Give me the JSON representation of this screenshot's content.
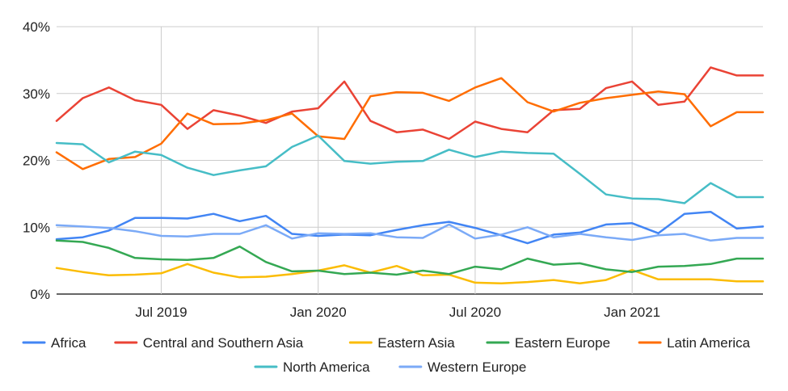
{
  "chart_data": {
    "type": "line",
    "title": "",
    "xlabel": "",
    "ylabel": "",
    "ylim": [
      0,
      40
    ],
    "yticks": [
      0,
      10,
      20,
      30,
      40
    ],
    "ytick_labels": [
      "0%",
      "10%",
      "20%",
      "30%",
      "40%"
    ],
    "xtick_labels": [
      {
        "label": "Jul 2019",
        "index": 4
      },
      {
        "label": "Jan 2020",
        "index": 10
      },
      {
        "label": "Jul 2020",
        "index": 16
      },
      {
        "label": "Jan 2021",
        "index": 22
      }
    ],
    "x": [
      "Mar 2019",
      "Apr 2019",
      "May 2019",
      "Jun 2019",
      "Jul 2019",
      "Aug 2019",
      "Sep 2019",
      "Oct 2019",
      "Nov 2019",
      "Dec 2019",
      "Jan 2020",
      "Feb 2020",
      "Mar 2020",
      "Apr 2020",
      "May 2020",
      "Jun 2020",
      "Jul 2020",
      "Aug 2020",
      "Sep 2020",
      "Oct 2020",
      "Nov 2020",
      "Dec 2020",
      "Jan 2021",
      "Feb 2021",
      "Mar 2021",
      "Apr 2021",
      "May 2021",
      "Jun 2021"
    ],
    "grid": true,
    "legend_position": "bottom",
    "series": [
      {
        "name": "Africa",
        "color": "#4285f4",
        "values": [
          8.2,
          8.5,
          9.5,
          11.4,
          11.4,
          11.3,
          12.0,
          10.9,
          11.7,
          9.0,
          8.7,
          8.9,
          8.8,
          9.6,
          10.3,
          10.8,
          9.9,
          8.8,
          7.6,
          8.9,
          9.2,
          10.4,
          10.6,
          9.1,
          12.0,
          12.3,
          9.8,
          10.1
        ]
      },
      {
        "name": "Central and Southern Asia",
        "color": "#ea4335",
        "values": [
          25.9,
          29.3,
          30.9,
          29.0,
          28.3,
          24.7,
          27.5,
          26.7,
          25.6,
          27.3,
          27.8,
          31.8,
          25.9,
          24.2,
          24.6,
          23.2,
          25.8,
          24.7,
          24.2,
          27.5,
          27.7,
          30.8,
          31.8,
          28.3,
          28.8,
          33.9,
          32.7,
          32.7
        ]
      },
      {
        "name": "Eastern Asia",
        "color": "#fbbc04",
        "values": [
          3.9,
          3.3,
          2.8,
          2.9,
          3.1,
          4.5,
          3.2,
          2.5,
          2.6,
          3.0,
          3.5,
          4.3,
          3.2,
          4.2,
          2.8,
          2.9,
          1.7,
          1.6,
          1.8,
          2.1,
          1.6,
          2.1,
          3.6,
          2.2,
          2.2,
          2.2,
          1.9,
          1.9
        ]
      },
      {
        "name": "Eastern Europe",
        "color": "#34a853",
        "values": [
          8.0,
          7.8,
          6.9,
          5.4,
          5.2,
          5.1,
          5.4,
          7.1,
          4.8,
          3.4,
          3.5,
          3.0,
          3.2,
          2.9,
          3.5,
          3.0,
          4.1,
          3.7,
          5.3,
          4.4,
          4.6,
          3.7,
          3.3,
          4.1,
          4.2,
          4.5,
          5.3,
          5.3
        ]
      },
      {
        "name": "Latin America",
        "color": "#ff6d01",
        "values": [
          21.2,
          18.7,
          20.2,
          20.5,
          22.5,
          27.0,
          25.4,
          25.5,
          26.0,
          27.0,
          23.6,
          23.2,
          29.6,
          30.2,
          30.1,
          28.9,
          30.9,
          32.3,
          28.7,
          27.3,
          28.6,
          29.3,
          29.8,
          30.3,
          29.9,
          25.1,
          27.2,
          27.2
        ]
      },
      {
        "name": "North America",
        "color": "#46bdc6",
        "values": [
          22.6,
          22.4,
          19.7,
          21.3,
          20.8,
          18.9,
          17.8,
          18.5,
          19.1,
          22.0,
          23.7,
          19.9,
          19.5,
          19.8,
          19.9,
          21.6,
          20.5,
          21.3,
          21.1,
          21.0,
          18.0,
          14.9,
          14.3,
          14.2,
          13.6,
          16.6,
          14.5,
          14.5
        ]
      },
      {
        "name": "Western Europe",
        "color": "#7baaf7",
        "values": [
          10.3,
          10.1,
          9.9,
          9.4,
          8.7,
          8.6,
          9.0,
          9.0,
          10.3,
          8.3,
          9.1,
          9.0,
          9.1,
          8.5,
          8.4,
          10.4,
          8.3,
          8.9,
          10.0,
          8.5,
          9.0,
          8.5,
          8.1,
          8.8,
          9.0,
          8.0,
          8.4,
          8.4
        ]
      }
    ]
  }
}
